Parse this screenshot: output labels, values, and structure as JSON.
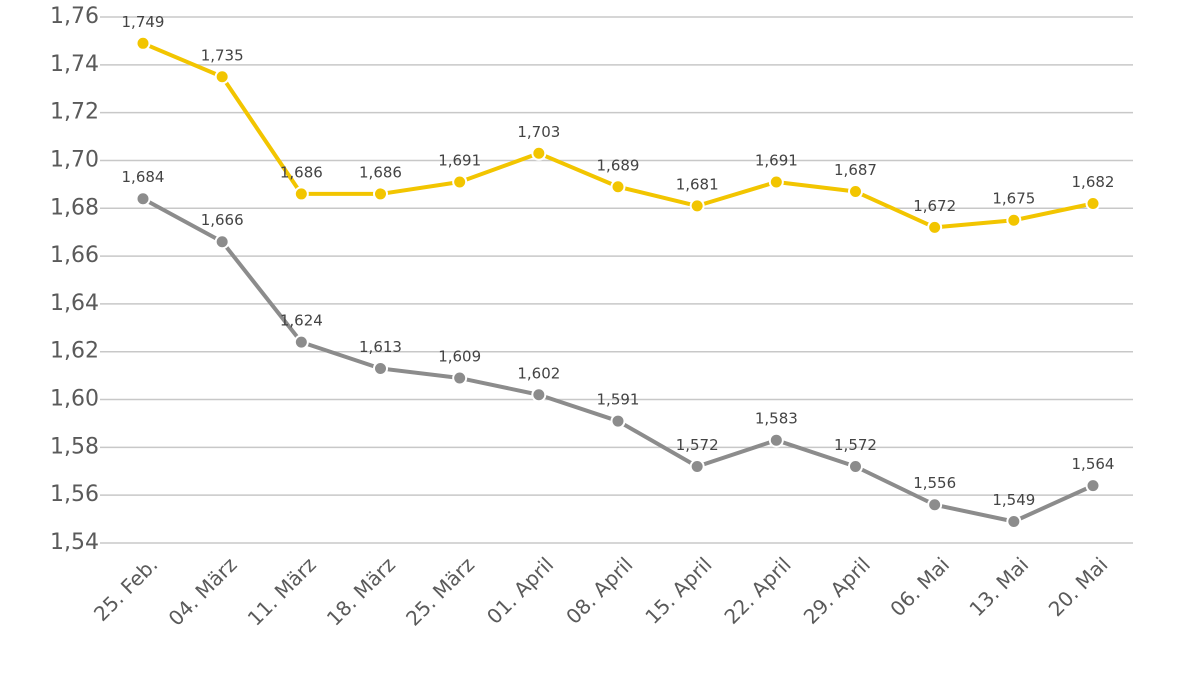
{
  "chart_data": {
    "type": "line",
    "categories": [
      "25. Feb.",
      "04. März",
      "11. März",
      "18. März",
      "25. März",
      "01. April",
      "08. April",
      "15. April",
      "22. April",
      "29. April",
      "06. Mai",
      "13. Mai",
      "20. Mai"
    ],
    "series": [
      {
        "color": "#f2c500",
        "values": [
          1.749,
          1.735,
          1.686,
          1.686,
          1.691,
          1.703,
          1.689,
          1.681,
          1.691,
          1.687,
          1.672,
          1.675,
          1.682
        ],
        "value_labels": [
          "1,749",
          "1,735",
          "1,686",
          "1,686",
          "1,691",
          "1,703",
          "1,689",
          "1,681",
          "1,691",
          "1,687",
          "1,672",
          "1,675",
          "1,682"
        ]
      },
      {
        "color": "#8c8c8c",
        "values": [
          1.684,
          1.666,
          1.624,
          1.613,
          1.609,
          1.602,
          1.591,
          1.572,
          1.583,
          1.572,
          1.556,
          1.549,
          1.564
        ],
        "value_labels": [
          "1,684",
          "1,666",
          "1,624",
          "1,613",
          "1,609",
          "1,602",
          "1,591",
          "1,572",
          "1,583",
          "1,572",
          "1,556",
          "1,549",
          "1,564"
        ]
      }
    ],
    "ylim": [
      1.54,
      1.76
    ],
    "yticks": [
      {
        "value": 1.54,
        "label": "1,54"
      },
      {
        "value": 1.56,
        "label": "1,56"
      },
      {
        "value": 1.58,
        "label": "1,58"
      },
      {
        "value": 1.6,
        "label": "1,60"
      },
      {
        "value": 1.62,
        "label": "1,62"
      },
      {
        "value": 1.64,
        "label": "1,64"
      },
      {
        "value": 1.66,
        "label": "1,66"
      },
      {
        "value": 1.68,
        "label": "1,68"
      },
      {
        "value": 1.7,
        "label": "1,70"
      },
      {
        "value": 1.72,
        "label": "1,72"
      },
      {
        "value": 1.74,
        "label": "1,74"
      },
      {
        "value": 1.76,
        "label": "1,76"
      }
    ],
    "grid": true
  }
}
